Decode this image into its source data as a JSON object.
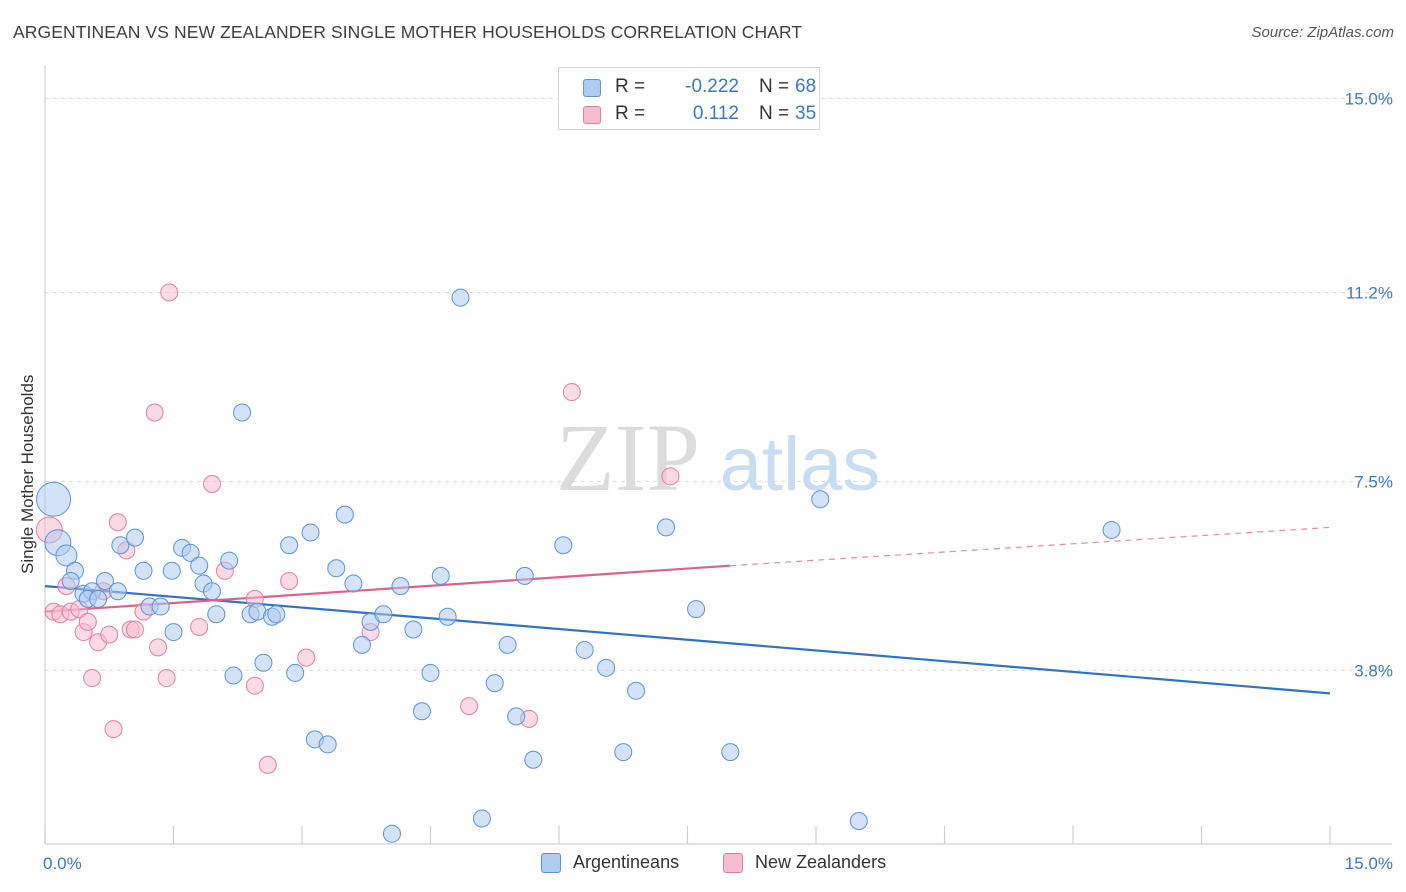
{
  "title": "ARGENTINEAN VS NEW ZEALANDER SINGLE MOTHER HOUSEHOLDS CORRELATION CHART",
  "source": "Source: ZipAtlas.com",
  "watermark": {
    "zip": "ZIP",
    "atlas": "atlas"
  },
  "legend_top": {
    "rows": [
      {
        "r_label": "R =",
        "r_value": "-0.222",
        "n_label": "N =",
        "n_value": "68"
      },
      {
        "r_label": "R =",
        "r_value": "0.112",
        "n_label": "N =",
        "n_value": "35"
      }
    ]
  },
  "legend_bottom": {
    "items": [
      {
        "label": "Argentineans"
      },
      {
        "label": "New Zealanders"
      }
    ]
  },
  "colors": {
    "blue_fill": "#aecbf0",
    "blue_stroke": "#5b93d6",
    "blue_line": "#2f72cc",
    "pink_fill": "#f6bcd0",
    "pink_stroke": "#e27fa1",
    "pink_line": "#e0608a",
    "tick_label": "#3a78c9",
    "grid": "#d9d9d9"
  },
  "chart_data": {
    "type": "scatter",
    "title": "ARGENTINEAN VS NEW ZEALANDER SINGLE MOTHER HOUSEHOLDS CORRELATION CHART",
    "xlabel": "",
    "ylabel": "Single Mother Households",
    "xlim": [
      0,
      15
    ],
    "ylim": [
      0.4,
      15.4
    ],
    "x_tick_labels": [
      "0.0%",
      "15.0%"
    ],
    "y_ticks": [
      3.8,
      7.5,
      11.2,
      15.0
    ],
    "y_tick_labels": [
      "3.8%",
      "7.5%",
      "11.2%",
      "15.0%"
    ],
    "grid": "horizontal dashed",
    "legend": "top-center and bottom",
    "series": [
      {
        "name": "Argentineans",
        "R": -0.222,
        "N": 68,
        "trend": {
          "x0": 0.0,
          "y0": 5.45,
          "x1": 15.0,
          "y1": 3.35
        },
        "points": [
          [
            0.1,
            7.15
          ],
          [
            0.15,
            6.3
          ],
          [
            0.25,
            6.05
          ],
          [
            0.35,
            5.75
          ],
          [
            0.3,
            5.55
          ],
          [
            0.45,
            5.3
          ],
          [
            0.55,
            5.35
          ],
          [
            0.5,
            5.2
          ],
          [
            0.62,
            5.2
          ],
          [
            0.7,
            5.55
          ],
          [
            0.85,
            5.35
          ],
          [
            0.88,
            6.25
          ],
          [
            1.05,
            6.4
          ],
          [
            1.15,
            5.75
          ],
          [
            1.22,
            5.05
          ],
          [
            1.35,
            5.05
          ],
          [
            1.48,
            5.75
          ],
          [
            1.5,
            4.55
          ],
          [
            1.6,
            6.2
          ],
          [
            1.7,
            6.1
          ],
          [
            1.8,
            5.85
          ],
          [
            1.85,
            5.5
          ],
          [
            1.95,
            5.35
          ],
          [
            2.0,
            4.9
          ],
          [
            2.15,
            5.95
          ],
          [
            2.2,
            3.7
          ],
          [
            2.3,
            8.85
          ],
          [
            2.4,
            4.9
          ],
          [
            2.48,
            4.95
          ],
          [
            2.55,
            3.95
          ],
          [
            2.65,
            4.85
          ],
          [
            2.7,
            4.9
          ],
          [
            2.85,
            6.25
          ],
          [
            2.92,
            3.75
          ],
          [
            3.1,
            6.5
          ],
          [
            3.15,
            2.45
          ],
          [
            3.3,
            2.35
          ],
          [
            3.4,
            5.8
          ],
          [
            3.5,
            6.85
          ],
          [
            3.6,
            5.5
          ],
          [
            3.7,
            4.3
          ],
          [
            3.8,
            4.75
          ],
          [
            3.95,
            4.9
          ],
          [
            4.05,
            0.6
          ],
          [
            4.15,
            5.45
          ],
          [
            4.3,
            4.6
          ],
          [
            4.4,
            3.0
          ],
          [
            4.5,
            3.75
          ],
          [
            4.62,
            5.65
          ],
          [
            4.7,
            4.85
          ],
          [
            4.85,
            11.1
          ],
          [
            5.1,
            0.9
          ],
          [
            5.25,
            3.55
          ],
          [
            5.4,
            4.3
          ],
          [
            5.5,
            2.9
          ],
          [
            5.6,
            5.65
          ],
          [
            5.7,
            2.05
          ],
          [
            6.05,
            6.25
          ],
          [
            6.3,
            4.2
          ],
          [
            6.55,
            3.85
          ],
          [
            6.75,
            2.2
          ],
          [
            6.9,
            3.4
          ],
          [
            7.25,
            6.6
          ],
          [
            7.6,
            5.0
          ],
          [
            8.0,
            2.2
          ],
          [
            9.05,
            7.15
          ],
          [
            9.5,
            0.85
          ],
          [
            12.45,
            6.55
          ]
        ],
        "sizes_note": "points near x=0 drawn larger"
      },
      {
        "name": "New Zealanders",
        "R": 0.112,
        "N": 35,
        "trend": {
          "x0": 0.0,
          "y0": 4.95,
          "x1": 8.0,
          "y1": 5.85,
          "dashed_to": {
            "x": 15.0,
            "y": 6.6
          }
        },
        "points": [
          [
            0.05,
            6.55
          ],
          [
            0.1,
            4.95
          ],
          [
            0.18,
            4.9
          ],
          [
            0.25,
            5.45
          ],
          [
            0.3,
            4.95
          ],
          [
            0.4,
            5.0
          ],
          [
            0.45,
            4.55
          ],
          [
            0.5,
            4.75
          ],
          [
            0.55,
            3.65
          ],
          [
            0.62,
            4.35
          ],
          [
            0.68,
            5.35
          ],
          [
            0.75,
            4.5
          ],
          [
            0.8,
            2.65
          ],
          [
            0.85,
            6.7
          ],
          [
            0.95,
            6.15
          ],
          [
            1.0,
            4.6
          ],
          [
            1.05,
            4.6
          ],
          [
            1.15,
            4.95
          ],
          [
            1.28,
            8.85
          ],
          [
            1.32,
            4.25
          ],
          [
            1.42,
            3.65
          ],
          [
            1.45,
            11.2
          ],
          [
            1.8,
            4.65
          ],
          [
            1.95,
            7.45
          ],
          [
            2.1,
            5.75
          ],
          [
            2.45,
            5.2
          ],
          [
            2.45,
            3.5
          ],
          [
            2.6,
            1.95
          ],
          [
            2.85,
            5.55
          ],
          [
            3.05,
            4.05
          ],
          [
            3.8,
            4.55
          ],
          [
            4.95,
            3.1
          ],
          [
            5.65,
            2.85
          ],
          [
            6.15,
            9.25
          ],
          [
            7.3,
            7.6
          ]
        ]
      }
    ]
  }
}
